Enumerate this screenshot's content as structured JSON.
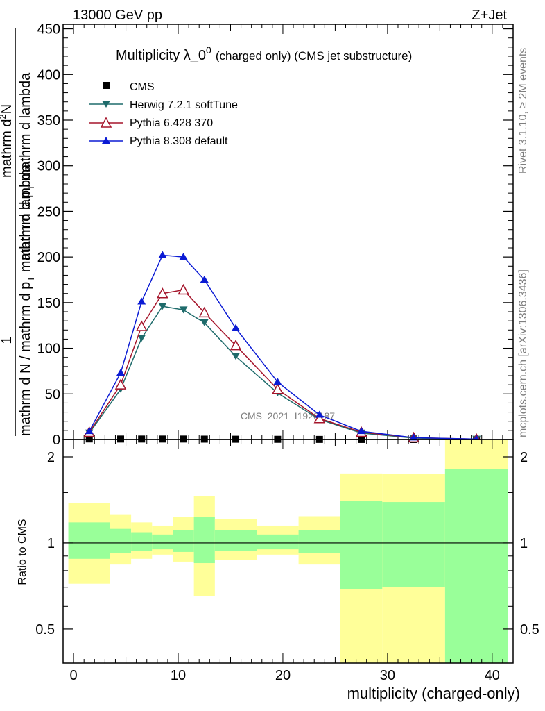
{
  "header": {
    "energy": "13000 GeV pp",
    "process": "Z+Jet"
  },
  "side_text": {
    "rivet": "Rivet 3.1.10, ≥ 2M events",
    "mcplots": "mcplots.cern.ch [arXiv:1306.3436]"
  },
  "chart_data": {
    "type": "line",
    "title_main": "Multiplicity λ_0",
    "title_sup": "0",
    "title_sub": "(charged only) (CMS jet substructure)",
    "watermark": "CMS_2021_I1920187",
    "ylabel_parts": {
      "one": "1",
      "den": "mathrm d N / mathrm d p",
      "den_sub": "T",
      "den_tail": " mathrm d lambda",
      "num": "mathrm d",
      "num_sup": "2",
      "num_tail": "N",
      "den2": "mathrm d p",
      "den2_sub": "T",
      "den2_tail": " mathrm d lambda"
    },
    "xlabel": "multiplicity (charged-only)",
    "ratio_ylabel": "Ratio to CMS",
    "xlim": [
      -1,
      42
    ],
    "ylim": [
      0,
      455
    ],
    "xticks": [
      0,
      10,
      20,
      30,
      40
    ],
    "yticks": [
      0,
      50,
      100,
      150,
      200,
      250,
      300,
      350,
      400,
      450
    ],
    "ratio_ylim": [
      0.38,
      2.3
    ],
    "ratio_yticks": [
      0.5,
      1,
      2
    ],
    "series": [
      {
        "name": "CMS",
        "marker": "square",
        "color": "#000000",
        "x": [
          1.5,
          4.5,
          6.5,
          8.5,
          10.5,
          12.5,
          15.5,
          19.5,
          23.5,
          27.5,
          32.5,
          38.5
        ],
        "values": [
          0.6,
          0.5,
          0.5,
          0.5,
          0.5,
          0.4,
          0.3,
          0.2,
          0.1,
          0.05,
          0.02,
          0.01
        ]
      },
      {
        "name": "Herwig 7.2.1 softTune",
        "marker": "triangle-down",
        "color": "#1e6b6b",
        "x": [
          1.5,
          4.5,
          6.5,
          8.5,
          10.5,
          12.5,
          15.5,
          19.5,
          23.5,
          27.5,
          32.5,
          38.5
        ],
        "values": [
          7,
          55,
          111,
          146,
          142,
          128,
          91,
          51,
          22,
          7,
          1.5,
          0.3
        ]
      },
      {
        "name": "Pythia 6.428 370",
        "marker": "triangle-open",
        "color": "#a5152b",
        "x": [
          1.5,
          4.5,
          6.5,
          8.5,
          10.5,
          12.5,
          15.5,
          19.5,
          23.5,
          27.5,
          32.5,
          38.5
        ],
        "values": [
          8,
          60,
          124,
          160,
          164,
          139,
          103,
          55,
          23,
          8,
          2,
          0.4
        ]
      },
      {
        "name": "Pythia 8.308 default",
        "marker": "triangle-up",
        "color": "#0b1bd4",
        "x": [
          1.5,
          4.5,
          6.5,
          8.5,
          10.5,
          12.5,
          15.5,
          19.5,
          23.5,
          27.5,
          32.5,
          38.5
        ],
        "values": [
          9,
          73,
          151,
          202,
          200,
          175,
          122,
          63,
          27,
          9,
          2,
          0.5
        ]
      }
    ],
    "ratio_bands": [
      {
        "x0": -0.5,
        "x1": 3.5,
        "green": [
          0.88,
          1.18
        ],
        "yellow": [
          0.72,
          1.38
        ]
      },
      {
        "x0": 3.5,
        "x1": 5.5,
        "green": [
          0.92,
          1.12
        ],
        "yellow": [
          0.84,
          1.26
        ]
      },
      {
        "x0": 5.5,
        "x1": 7.5,
        "green": [
          0.94,
          1.09
        ],
        "yellow": [
          0.88,
          1.18
        ]
      },
      {
        "x0": 7.5,
        "x1": 9.5,
        "green": [
          0.95,
          1.07
        ],
        "yellow": [
          0.91,
          1.15
        ]
      },
      {
        "x0": 9.5,
        "x1": 11.5,
        "green": [
          0.93,
          1.11
        ],
        "yellow": [
          0.86,
          1.23
        ]
      },
      {
        "x0": 11.5,
        "x1": 13.5,
        "green": [
          0.85,
          1.23
        ],
        "yellow": [
          0.65,
          1.46
        ]
      },
      {
        "x0": 13.5,
        "x1": 17.5,
        "green": [
          0.94,
          1.11
        ],
        "yellow": [
          0.87,
          1.21
        ]
      },
      {
        "x0": 17.5,
        "x1": 21.5,
        "green": [
          0.95,
          1.07
        ],
        "yellow": [
          0.91,
          1.15
        ]
      },
      {
        "x0": 21.5,
        "x1": 25.5,
        "green": [
          0.92,
          1.11
        ],
        "yellow": [
          0.84,
          1.24
        ]
      },
      {
        "x0": 25.5,
        "x1": 29.5,
        "green": [
          0.69,
          1.4
        ],
        "yellow": [
          0.38,
          1.75
        ]
      },
      {
        "x0": 29.5,
        "x1": 35.5,
        "green": [
          0.7,
          1.39
        ],
        "yellow": [
          0.38,
          1.74
        ]
      },
      {
        "x0": 35.5,
        "x1": 41.5,
        "green": [
          0.38,
          1.81
        ],
        "yellow": [
          0.38,
          2.3
        ]
      }
    ],
    "colors": {
      "green": "#99ff99",
      "yellow": "#ffff99"
    }
  }
}
